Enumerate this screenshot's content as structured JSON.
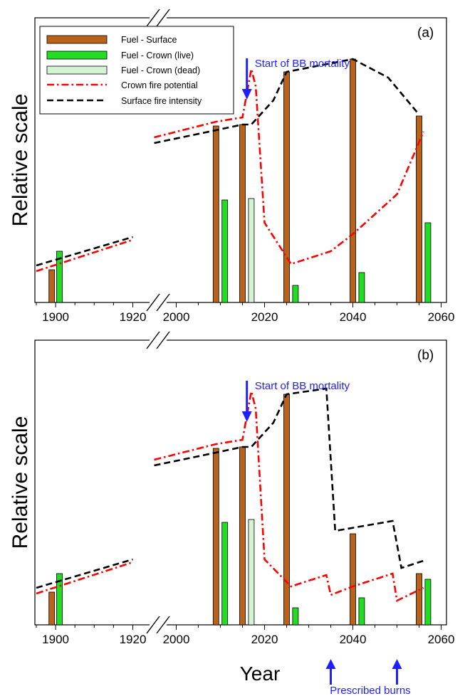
{
  "figure": {
    "xlabel": "Year",
    "ylabel": "Relative scale",
    "legend": {
      "placement": "top-left",
      "entries": [
        {
          "key": "fuel_surface",
          "label": "Fuel - Surface",
          "kind": "bar",
          "color": "#b8621b"
        },
        {
          "key": "fuel_crown_live",
          "label": "Fuel - Crown (live)",
          "kind": "bar",
          "color": "#22dd22"
        },
        {
          "key": "fuel_crown_dead",
          "label": "Fuel - Crown (dead)",
          "kind": "bar",
          "color": "#d4f2d4"
        },
        {
          "key": "crown_fire",
          "label": "Crown fire potential",
          "kind": "line",
          "color": "#ff0000",
          "dash": "dash-dot"
        },
        {
          "key": "surface_fire",
          "label": "Surface fire intensity",
          "kind": "line",
          "color": "#000000",
          "dash": "dashed"
        }
      ]
    },
    "annotation_color": "#1f1fff",
    "prescribed_burns_label": "Prescribed burns"
  },
  "chart_data": [
    {
      "type": "bar",
      "panel_label": "(a)",
      "xlabel": "",
      "ylabel": "Relative scale",
      "x_axis": {
        "broken": true,
        "segments": [
          {
            "range": [
              1895,
              1925
            ],
            "ticks": [
              1900,
              1920
            ]
          },
          {
            "range": [
              1995,
              2060
            ],
            "ticks": [
              2000,
              2020,
              2040,
              2060
            ]
          }
        ],
        "tick_labels": [
          "1900",
          "1920",
          "2000",
          "2020",
          "2040",
          "2060"
        ]
      },
      "ylim": [
        0,
        1
      ],
      "grid": false,
      "annotation": {
        "text": "Start of BB mortality",
        "year": 2016
      },
      "series": [
        {
          "key": "fuel_surface",
          "name": "Fuel - Surface",
          "x": [
            1899,
            2009,
            2015,
            2025,
            2040,
            2055
          ],
          "values": [
            0.115,
            0.62,
            0.625,
            0.81,
            0.855,
            0.655
          ]
        },
        {
          "key": "fuel_crown_live",
          "name": "Fuel - Crown (live)",
          "x": [
            1901,
            2011,
            2027,
            2042,
            2057
          ],
          "values": [
            0.18,
            0.36,
            0.06,
            0.105,
            0.28
          ]
        },
        {
          "key": "fuel_crown_dead",
          "name": "Fuel - Crown (dead)",
          "x": [
            2017
          ],
          "values": [
            0.365
          ]
        },
        {
          "key": "crown_fire",
          "name": "Crown fire potential",
          "segments": [
            [
              [
                1895,
                0.11
              ],
              [
                1920,
                0.22
              ]
            ],
            [
              [
                1995,
                0.58
              ],
              [
                2009,
                0.635
              ],
              [
                2015,
                0.65
              ],
              [
                2017,
                0.82
              ],
              [
                2018,
                0.76
              ],
              [
                2020,
                0.28
              ],
              [
                2026,
                0.135
              ],
              [
                2035,
                0.18
              ],
              [
                2040,
                0.24
              ],
              [
                2050,
                0.38
              ],
              [
                2056,
                0.6
              ]
            ]
          ]
        },
        {
          "key": "surface_fire",
          "name": "Surface fire intensity",
          "segments": [
            [
              [
                1895,
                0.13
              ],
              [
                1920,
                0.23
              ]
            ],
            [
              [
                1995,
                0.56
              ],
              [
                2009,
                0.605
              ],
              [
                2015,
                0.625
              ],
              [
                2017,
                0.625
              ],
              [
                2022,
                0.71
              ],
              [
                2025,
                0.81
              ],
              [
                2040,
                0.855
              ],
              [
                2048,
                0.79
              ],
              [
                2055,
                0.66
              ]
            ]
          ]
        }
      ]
    },
    {
      "type": "bar",
      "panel_label": "(b)",
      "xlabel": "Year",
      "ylabel": "Relative scale",
      "x_axis": {
        "broken": true,
        "segments": [
          {
            "range": [
              1895,
              1925
            ],
            "ticks": [
              1900,
              1920
            ]
          },
          {
            "range": [
              1995,
              2060
            ],
            "ticks": [
              2000,
              2020,
              2040,
              2060
            ]
          }
        ],
        "tick_labels": [
          "1900",
          "1920",
          "2000",
          "2020",
          "2040",
          "2060"
        ]
      },
      "ylim": [
        0,
        1
      ],
      "grid": false,
      "annotation": {
        "text": "Start of BB mortality",
        "year": 2016
      },
      "prescribed_burns": [
        2035,
        2050
      ],
      "series": [
        {
          "key": "fuel_surface",
          "name": "Fuel - Surface",
          "x": [
            1899,
            2009,
            2015,
            2025,
            2040,
            2055
          ],
          "values": [
            0.115,
            0.62,
            0.625,
            0.81,
            0.32,
            0.18
          ]
        },
        {
          "key": "fuel_crown_live",
          "name": "Fuel - Crown (live)",
          "x": [
            1901,
            2011,
            2027,
            2042,
            2057
          ],
          "values": [
            0.18,
            0.36,
            0.06,
            0.095,
            0.16
          ]
        },
        {
          "key": "fuel_crown_dead",
          "name": "Fuel - Crown (dead)",
          "x": [
            2017
          ],
          "values": [
            0.37
          ]
        },
        {
          "key": "crown_fire",
          "name": "Crown fire potential",
          "segments": [
            [
              [
                1895,
                0.11
              ],
              [
                1920,
                0.22
              ]
            ],
            [
              [
                1995,
                0.58
              ],
              [
                2009,
                0.635
              ],
              [
                2015,
                0.65
              ],
              [
                2017,
                0.82
              ],
              [
                2018,
                0.76
              ],
              [
                2020,
                0.23
              ],
              [
                2026,
                0.135
              ],
              [
                2034,
                0.175
              ],
              [
                2035,
                0.105
              ],
              [
                2040,
                0.135
              ],
              [
                2049,
                0.18
              ],
              [
                2050,
                0.085
              ],
              [
                2056,
                0.13
              ]
            ]
          ]
        },
        {
          "key": "surface_fire",
          "name": "Surface fire intensity",
          "segments": [
            [
              [
                1895,
                0.13
              ],
              [
                1920,
                0.23
              ]
            ],
            [
              [
                1995,
                0.56
              ],
              [
                2009,
                0.605
              ],
              [
                2015,
                0.625
              ],
              [
                2017,
                0.625
              ],
              [
                2022,
                0.71
              ],
              [
                2025,
                0.81
              ],
              [
                2034,
                0.83
              ],
              [
                2036,
                0.33
              ],
              [
                2049,
                0.365
              ],
              [
                2051,
                0.2
              ],
              [
                2056,
                0.225
              ]
            ]
          ]
        }
      ]
    }
  ]
}
